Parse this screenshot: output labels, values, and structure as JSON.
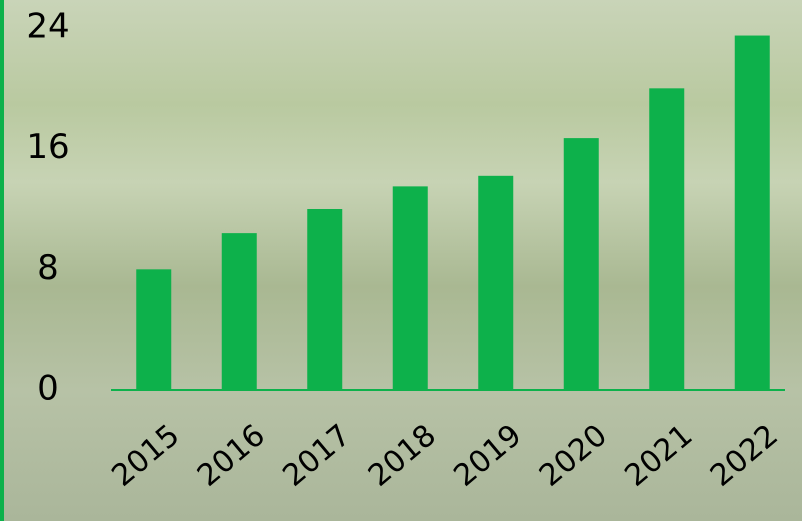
{
  "chart_data": {
    "type": "bar",
    "categories": [
      "2015",
      "2016",
      "2017",
      "2018",
      "2019",
      "2020",
      "2021",
      "2022"
    ],
    "values": [
      8.0,
      10.4,
      12.0,
      13.5,
      14.2,
      16.7,
      20.0,
      23.5
    ],
    "color": "#0db14b",
    "ylim": [
      0,
      24
    ],
    "yticks": [
      0,
      8,
      16,
      24
    ],
    "grid": false
  }
}
